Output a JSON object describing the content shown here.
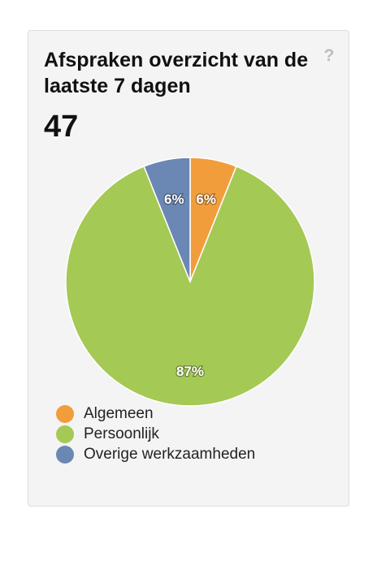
{
  "widget": {
    "title": "Afspraken overzicht van de laatste 7 dagen",
    "total": "47",
    "help_icon": "?"
  },
  "colors": {
    "orange": "#f29d3b",
    "green": "#a5c955",
    "blue": "#6b87b3",
    "card_bg": "#f4f4f4"
  },
  "chart_data": {
    "type": "pie",
    "start_angle": "top",
    "direction": "clockwise",
    "slices": [
      {
        "name": "Algemeen",
        "value": 6,
        "label": "6%",
        "color": "#f29d3b"
      },
      {
        "name": "Persoonlijk",
        "value": 87,
        "label": "87%",
        "color": "#a5c955"
      },
      {
        "name": "Overige werkzaamheden",
        "value": 6,
        "label": "6%",
        "color": "#6b87b3"
      }
    ],
    "legend": [
      "Algemeen",
      "Persoonlijk",
      "Overige werkzaamheden"
    ],
    "legend_position": "bottom-left"
  }
}
